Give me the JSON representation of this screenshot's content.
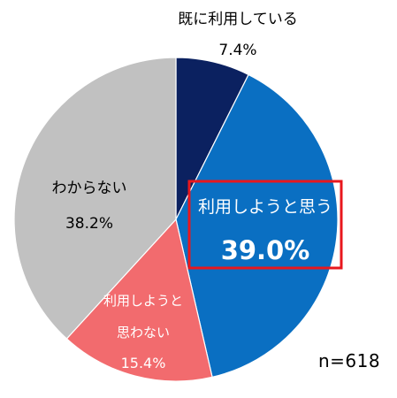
{
  "chart_data": {
    "type": "pie",
    "categories": [
      "既に利用している",
      "利用しようと思う",
      "利用しようと思わない",
      "わからない"
    ],
    "values": [
      7.4,
      39.0,
      15.4,
      38.2
    ],
    "value_labels": [
      "7.4%",
      "39.0%",
      "15.4%",
      "38.2%"
    ],
    "label_lines": [
      [
        "既に利用している"
      ],
      [
        "利用しようと思う"
      ],
      [
        "利用しようと",
        "思わない"
      ],
      [
        "わからない"
      ]
    ],
    "colors": [
      "#0b2160",
      "#0a6fc2",
      "#f26b6e",
      "#c1c1c1"
    ],
    "highlight_index": 1,
    "highlight_color": "#e8171d",
    "start_angle_deg": 0,
    "direction": "clockwise"
  },
  "sample_size_label": "n=618"
}
